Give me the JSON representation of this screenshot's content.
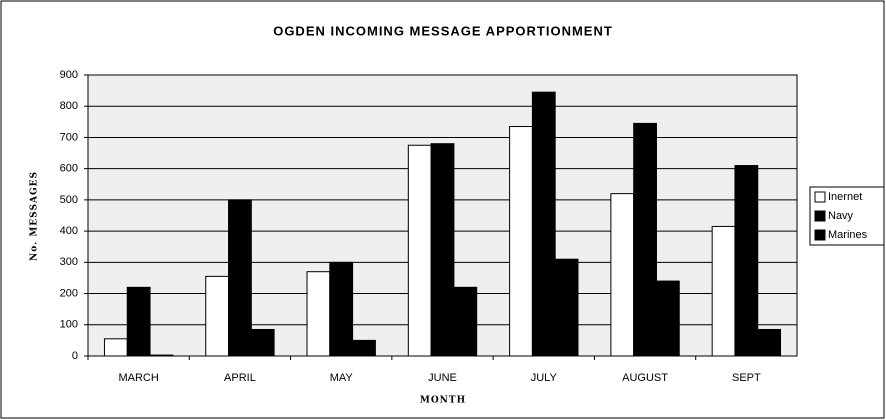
{
  "chart_data": {
    "type": "bar",
    "title": "OGDEN INCOMING MESSAGE APPORTIONMENT",
    "x_label": "MONTH",
    "y_label": "No. MESSAGES",
    "categories": [
      "MARCH",
      "APRIL",
      "MAY",
      "JUNE",
      "JULY",
      "AUGUST",
      "SEPT"
    ],
    "series": [
      {
        "name": "Inernet",
        "color": "#ffffff",
        "values": [
          55,
          255,
          270,
          675,
          735,
          520,
          415
        ]
      },
      {
        "name": "Navy",
        "color": "#000000",
        "values": [
          220,
          500,
          300,
          680,
          845,
          745,
          610
        ]
      },
      {
        "name": "Marines",
        "color": "#000000",
        "values": [
          3,
          85,
          50,
          220,
          310,
          240,
          85
        ]
      }
    ],
    "ylim": [
      0,
      900
    ],
    "yticks": [
      0,
      100,
      200,
      300,
      400,
      500,
      600,
      700,
      800,
      900
    ],
    "grid": true,
    "legend": "right"
  }
}
